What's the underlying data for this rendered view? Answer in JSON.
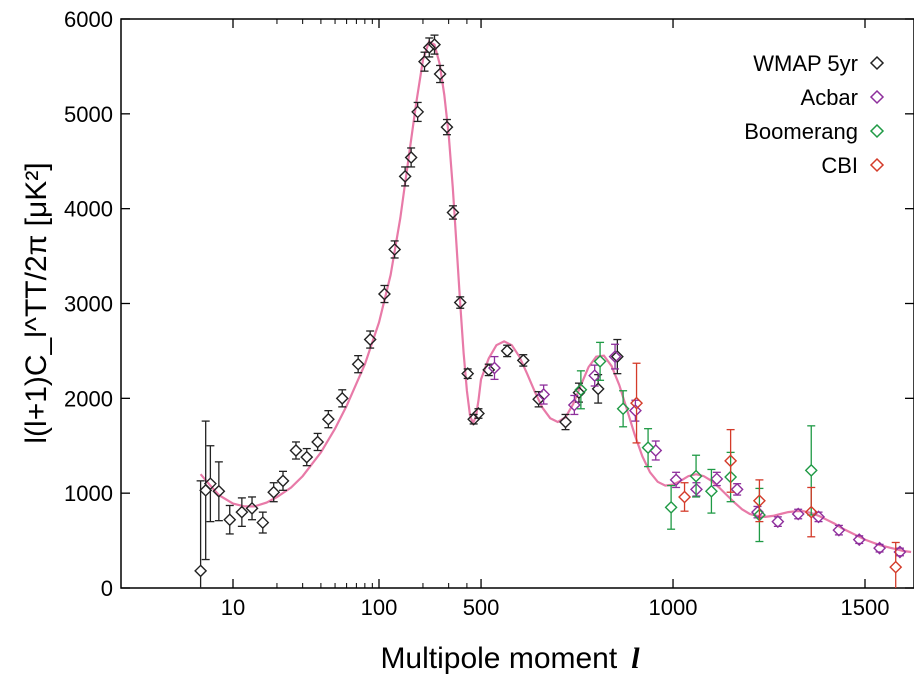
{
  "chart_data": {
    "type": "scatter",
    "title": "",
    "xlabel": "Multipole moment",
    "xlabel_symbol": "l",
    "ylabel": "l(l+1)C_l^TT/2π [μK²]",
    "x_scale": "piecewise: logarithmic for l < 500, linear for l ≥ 500",
    "x_ticks": [
      10,
      100,
      500,
      1000,
      1500
    ],
    "x_tick_labels": [
      "10",
      "100",
      "500",
      "1000",
      "1500"
    ],
    "ylim": [
      0,
      6000
    ],
    "y_ticks": [
      0,
      1000,
      2000,
      3000,
      4000,
      5000,
      6000
    ],
    "y_tick_labels": [
      "0",
      "1000",
      "2000",
      "3000",
      "4000",
      "5000",
      "6000"
    ],
    "legend_position": "top-right",
    "model_curve_color": "#e87aa8",
    "series": [
      {
        "name": "WMAP 5yr",
        "marker": "diamond-open",
        "color": "#222222",
        "points": [
          {
            "x": 6,
            "y": 180,
            "err": 950
          },
          {
            "x": 6.5,
            "y": 1030,
            "err": 730
          },
          {
            "x": 7,
            "y": 1100,
            "err": 400
          },
          {
            "x": 8,
            "y": 1020,
            "err": 310
          },
          {
            "x": 9.5,
            "y": 720,
            "err": 150
          },
          {
            "x": 11.5,
            "y": 800,
            "err": 150
          },
          {
            "x": 13.5,
            "y": 840,
            "err": 120
          },
          {
            "x": 16,
            "y": 690,
            "err": 110
          },
          {
            "x": 19,
            "y": 1010,
            "err": 100
          },
          {
            "x": 22,
            "y": 1130,
            "err": 100
          },
          {
            "x": 27,
            "y": 1450,
            "err": 90
          },
          {
            "x": 32,
            "y": 1380,
            "err": 90
          },
          {
            "x": 38,
            "y": 1540,
            "err": 90
          },
          {
            "x": 45,
            "y": 1780,
            "err": 90
          },
          {
            "x": 56,
            "y": 2000,
            "err": 90
          },
          {
            "x": 72,
            "y": 2360,
            "err": 90
          },
          {
            "x": 87,
            "y": 2620,
            "err": 90
          },
          {
            "x": 109,
            "y": 3100,
            "err": 90
          },
          {
            "x": 128,
            "y": 3570,
            "err": 90
          },
          {
            "x": 151,
            "y": 4340,
            "err": 100
          },
          {
            "x": 166,
            "y": 4540,
            "err": 100
          },
          {
            "x": 184,
            "y": 5020,
            "err": 100
          },
          {
            "x": 205,
            "y": 5550,
            "err": 100
          },
          {
            "x": 221,
            "y": 5700,
            "err": 100
          },
          {
            "x": 240,
            "y": 5730,
            "err": 100
          },
          {
            "x": 262,
            "y": 5420,
            "err": 90
          },
          {
            "x": 292,
            "y": 4860,
            "err": 80
          },
          {
            "x": 321,
            "y": 3960,
            "err": 70
          },
          {
            "x": 360,
            "y": 3010,
            "err": 60
          },
          {
            "x": 405,
            "y": 2260,
            "err": 50
          },
          {
            "x": 445,
            "y": 1780,
            "err": 50
          },
          {
            "x": 480,
            "y": 1840,
            "err": 50
          },
          {
            "x": 520,
            "y": 2300,
            "err": 60
          },
          {
            "x": 568,
            "y": 2500,
            "err": 60
          },
          {
            "x": 610,
            "y": 2400,
            "err": 60
          },
          {
            "x": 650,
            "y": 1990,
            "err": 80
          },
          {
            "x": 720,
            "y": 1750,
            "err": 80
          },
          {
            "x": 755,
            "y": 2060,
            "err": 100
          },
          {
            "x": 805,
            "y": 2100,
            "err": 150
          },
          {
            "x": 855,
            "y": 2440,
            "err": 180
          }
        ]
      },
      {
        "name": "Acbar",
        "marker": "diamond-open",
        "color": "#8e2f9c",
        "points": [
          {
            "x": 535,
            "y": 2320,
            "err": 120
          },
          {
            "x": 663,
            "y": 2040,
            "err": 100
          },
          {
            "x": 743,
            "y": 1930,
            "err": 100
          },
          {
            "x": 796,
            "y": 2240,
            "err": 110
          },
          {
            "x": 849,
            "y": 2440,
            "err": 130
          },
          {
            "x": 902,
            "y": 1870,
            "err": 110
          },
          {
            "x": 955,
            "y": 1450,
            "err": 100
          },
          {
            "x": 1008,
            "y": 1140,
            "err": 80
          },
          {
            "x": 1061,
            "y": 1040,
            "err": 70
          },
          {
            "x": 1114,
            "y": 1150,
            "err": 70
          },
          {
            "x": 1167,
            "y": 1040,
            "err": 60
          },
          {
            "x": 1220,
            "y": 800,
            "err": 60
          },
          {
            "x": 1273,
            "y": 700,
            "err": 50
          },
          {
            "x": 1326,
            "y": 780,
            "err": 50
          },
          {
            "x": 1379,
            "y": 750,
            "err": 50
          },
          {
            "x": 1432,
            "y": 610,
            "err": 50
          },
          {
            "x": 1485,
            "y": 510,
            "err": 40
          },
          {
            "x": 1538,
            "y": 420,
            "err": 40
          },
          {
            "x": 1591,
            "y": 380,
            "err": 40
          }
        ]
      },
      {
        "name": "Boomerang",
        "marker": "diamond-open",
        "color": "#1f9a45",
        "points": [
          {
            "x": 760,
            "y": 2090,
            "err": 200
          },
          {
            "x": 810,
            "y": 2390,
            "err": 200
          },
          {
            "x": 870,
            "y": 1890,
            "err": 190
          },
          {
            "x": 935,
            "y": 1480,
            "err": 200
          },
          {
            "x": 995,
            "y": 850,
            "err": 230
          },
          {
            "x": 1060,
            "y": 1180,
            "err": 220
          },
          {
            "x": 1100,
            "y": 1020,
            "err": 230
          },
          {
            "x": 1150,
            "y": 1170,
            "err": 260
          },
          {
            "x": 1225,
            "y": 770,
            "err": 280
          },
          {
            "x": 1360,
            "y": 1240,
            "err": 470
          }
        ]
      },
      {
        "name": "CBI",
        "marker": "diamond-open",
        "color": "#d43b2a",
        "points": [
          {
            "x": 905,
            "y": 1950,
            "err": 420
          },
          {
            "x": 1030,
            "y": 960,
            "err": 150
          },
          {
            "x": 1150,
            "y": 1340,
            "err": 330
          },
          {
            "x": 1225,
            "y": 920,
            "err": 220
          },
          {
            "x": 1360,
            "y": 800,
            "err": 260
          },
          {
            "x": 1580,
            "y": 220,
            "err": 260
          }
        ]
      }
    ],
    "model_curve": {
      "x": [
        6,
        7,
        8,
        10,
        12,
        14,
        17,
        20,
        25,
        30,
        40,
        50,
        60,
        80,
        100,
        120,
        140,
        160,
        180,
        200,
        220,
        240,
        260,
        280,
        300,
        320,
        340,
        360,
        380,
        400,
        420,
        440,
        460,
        480,
        500,
        520,
        540,
        560,
        580,
        600,
        620,
        640,
        660,
        680,
        700,
        720,
        740,
        760,
        780,
        800,
        820,
        840,
        860,
        880,
        900,
        920,
        940,
        960,
        980,
        1000,
        1020,
        1040,
        1060,
        1080,
        1100,
        1120,
        1140,
        1160,
        1180,
        1200,
        1220,
        1240,
        1260,
        1280,
        1300,
        1320,
        1340,
        1360,
        1380,
        1400,
        1420,
        1440,
        1460,
        1480,
        1500,
        1520,
        1540,
        1560,
        1580,
        1600,
        1620
      ],
      "y": [
        1200,
        1080,
        980,
        890,
        860,
        860,
        900,
        960,
        1060,
        1180,
        1430,
        1680,
        1920,
        2360,
        2800,
        3300,
        3900,
        4550,
        5120,
        5570,
        5760,
        5730,
        5530,
        5200,
        4780,
        4220,
        3600,
        3000,
        2480,
        2080,
        1820,
        1740,
        1800,
        1980,
        2200,
        2420,
        2560,
        2600,
        2560,
        2440,
        2260,
        2070,
        1900,
        1790,
        1750,
        1800,
        1940,
        2140,
        2330,
        2440,
        2450,
        2340,
        2140,
        1880,
        1620,
        1390,
        1220,
        1120,
        1080,
        1090,
        1130,
        1180,
        1200,
        1180,
        1130,
        1060,
        980,
        900,
        830,
        780,
        760,
        750,
        760,
        780,
        800,
        810,
        810,
        790,
        760,
        720,
        680,
        630,
        590,
        550,
        510,
        480,
        450,
        430,
        410,
        390,
        380
      ]
    }
  }
}
